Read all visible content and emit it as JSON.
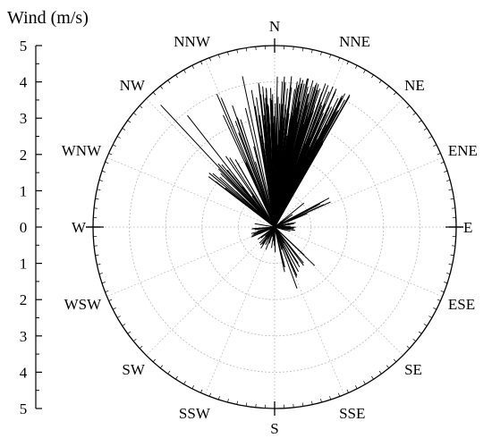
{
  "chart_data": {
    "type": "wind-vector-polar",
    "ylabel": "Wind (m/s)",
    "radial_range": [
      0,
      5
    ],
    "radial_ticks": [
      "5",
      "4",
      "3",
      "2",
      "1",
      "0",
      "1",
      "2",
      "3",
      "4",
      "5"
    ],
    "directions": [
      "N",
      "NNE",
      "NE",
      "ENE",
      "E",
      "ESE",
      "SE",
      "SSE",
      "S",
      "SSW",
      "SW",
      "WSW",
      "W",
      "WNW",
      "NW",
      "NNW"
    ],
    "grid": true,
    "colors": {
      "vector": "#000000",
      "grid": "#bbbbbb",
      "frame": "#000000"
    },
    "clusters": [
      {
        "dir_min": 0,
        "dir_max": 30,
        "speed_min": 0.3,
        "speed_max": 4.2,
        "count": 320
      },
      {
        "dir_min": 350,
        "dir_max": 360,
        "speed_min": 0.5,
        "speed_max": 4.0,
        "count": 60
      },
      {
        "dir_min": 335,
        "dir_max": 348,
        "speed_min": 1.5,
        "speed_max": 4.6,
        "count": 14
      },
      {
        "dir_min": 305,
        "dir_max": 330,
        "speed_min": 0.5,
        "speed_max": 2.4,
        "count": 25
      },
      {
        "dir_min": 45,
        "dir_max": 70,
        "speed_min": 0.3,
        "speed_max": 1.8,
        "count": 12
      },
      {
        "dir_min": 75,
        "dir_max": 110,
        "speed_min": 0.1,
        "speed_max": 0.6,
        "count": 30
      },
      {
        "dir_min": 130,
        "dir_max": 170,
        "speed_min": 0.2,
        "speed_max": 1.6,
        "count": 15
      },
      {
        "dir_min": 175,
        "dir_max": 280,
        "speed_min": 0.1,
        "speed_max": 0.7,
        "count": 40
      }
    ],
    "highlights": [
      {
        "dir": 317,
        "speed": 4.6
      },
      {
        "dir": 322,
        "speed": 3.9
      },
      {
        "dir": 160,
        "speed": 1.8
      },
      {
        "dir": 148,
        "speed": 1.3
      },
      {
        "dir": 62,
        "speed": 1.7
      }
    ]
  }
}
